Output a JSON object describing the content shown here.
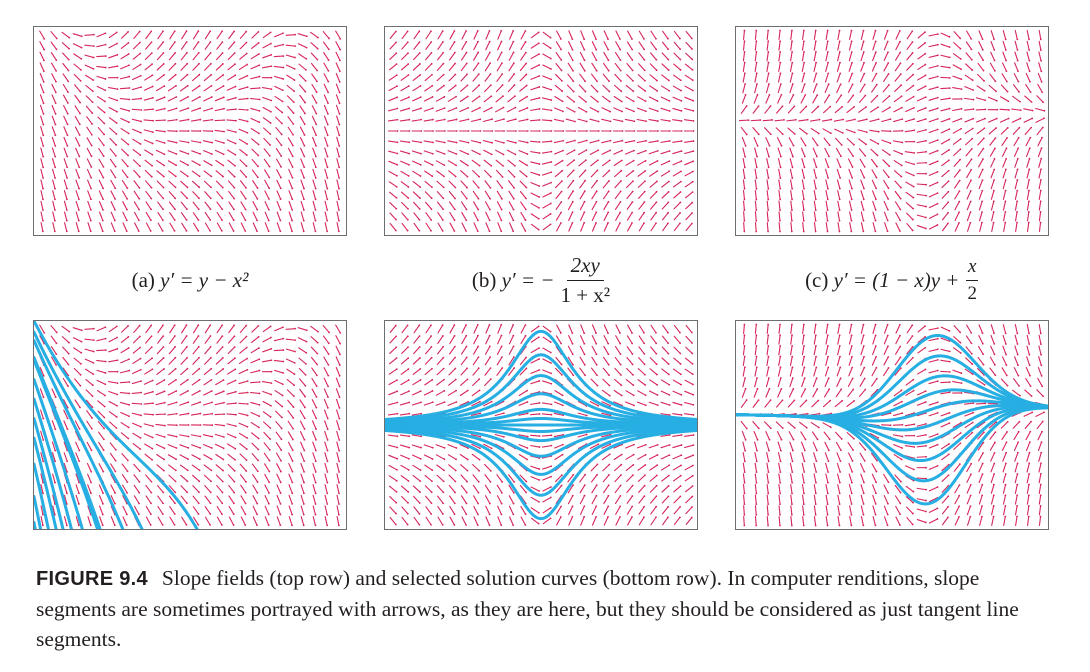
{
  "figure": {
    "label": "FIGURE 9.4",
    "caption": "Slope fields (top row) and selected solution curves (bottom row). In computer renditions, slope segments are sometimes portrayed with arrows, as they are here, but they should be considered as just tangent line segments."
  },
  "colors": {
    "slope_segment": "#d6265a",
    "solution_curve": "#27aee3",
    "frame": "#6d6e71"
  },
  "panels": [
    {
      "id": "a",
      "caption_tag": "(a)",
      "equation": "y′ = y − x²"
    },
    {
      "id": "b",
      "caption_tag": "(b)",
      "equation_lhs": "y′ = −",
      "numerator": "2xy",
      "denominator": "1 + x²"
    },
    {
      "id": "c",
      "caption_tag": "(c)",
      "equation_lhs": "y′ = (1 − x)y +",
      "numerator": "x",
      "denominator": "2"
    }
  ]
}
